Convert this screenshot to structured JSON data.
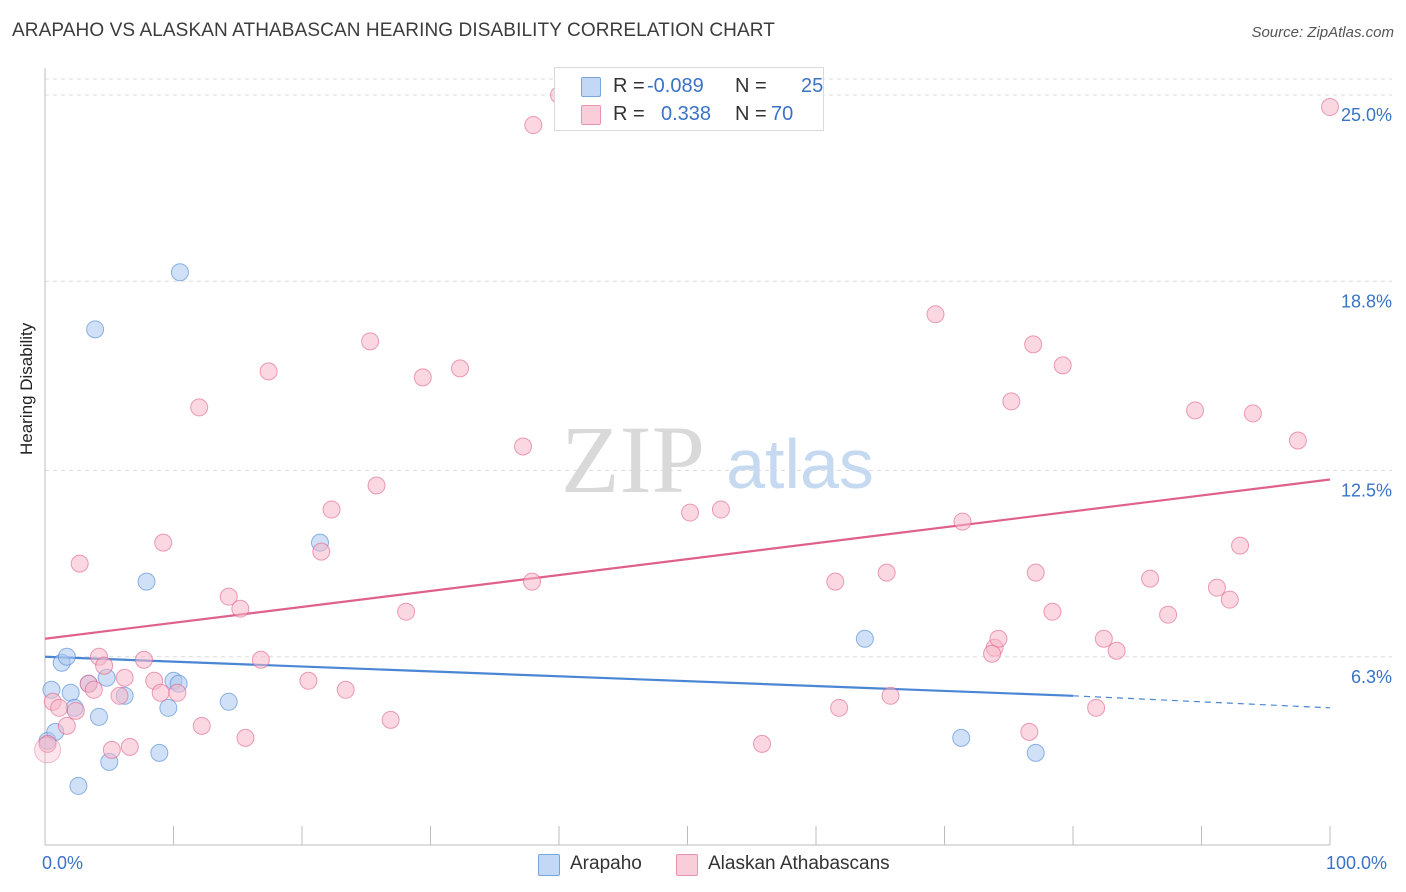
{
  "title": "ARAPAHO VS ALASKAN ATHABASCAN HEARING DISABILITY CORRELATION CHART",
  "source": "Source: ZipAtlas.com",
  "watermark": {
    "zip": "ZIP",
    "atlas": "atlas"
  },
  "legend_top": {
    "rows": [
      {
        "r_label": "R =",
        "r_value": "-0.089",
        "n_label": "N =",
        "n_value": "25",
        "color": "#a9c8f0"
      },
      {
        "r_label": "R =",
        "r_value": "0.338",
        "n_label": "N =",
        "n_value": "70",
        "color": "#f5b6c8"
      }
    ]
  },
  "legend_bottom": [
    {
      "label": "Arapaho",
      "color": "#a9c8f0"
    },
    {
      "label": "Alaskan Athabascans",
      "color": "#f5b6c8"
    }
  ],
  "axis": {
    "x_min_label": "0.0%",
    "x_max_label": "100.0%",
    "y_label": "Hearing Disability",
    "y_ticks": [
      "6.3%",
      "12.5%",
      "18.8%",
      "25.0%"
    ]
  },
  "chart_data": {
    "type": "scatter",
    "title": "ARAPAHO VS ALASKAN ATHABASCAN HEARING DISABILITY CORRELATION CHART",
    "xlabel": "",
    "ylabel": "Hearing Disability",
    "xlim": [
      0,
      100
    ],
    "ylim": [
      0,
      25.5
    ],
    "y_ticks": [
      6.3,
      12.5,
      18.8,
      25.0
    ],
    "series": [
      {
        "name": "Arapaho",
        "color": "#4a86d4",
        "fill": "#a9c8f0",
        "trend": {
          "x0": 0,
          "y0": 6.3,
          "x1": 80,
          "y1": 5.0,
          "dash_to_x": 100,
          "dash_to_y": 4.6
        },
        "points": [
          [
            0.2,
            3.5
          ],
          [
            0.5,
            5.2
          ],
          [
            0.8,
            3.8
          ],
          [
            1.3,
            6.1
          ],
          [
            1.7,
            6.3
          ],
          [
            2.0,
            5.1
          ],
          [
            2.3,
            4.6
          ],
          [
            2.6,
            2.0
          ],
          [
            3.4,
            5.4
          ],
          [
            4.2,
            4.3
          ],
          [
            5.0,
            2.8
          ],
          [
            4.8,
            5.6
          ],
          [
            6.2,
            5.0
          ],
          [
            3.9,
            17.2
          ],
          [
            7.9,
            8.8
          ],
          [
            8.9,
            3.1
          ],
          [
            9.6,
            4.6
          ],
          [
            10.0,
            5.5
          ],
          [
            10.4,
            5.4
          ],
          [
            10.5,
            19.1
          ],
          [
            14.3,
            4.8
          ],
          [
            21.4,
            10.1
          ],
          [
            63.8,
            6.9
          ],
          [
            71.3,
            3.6
          ],
          [
            77.1,
            3.1
          ]
        ]
      },
      {
        "name": "Alaskan Athabascans",
        "color": "#e0608c",
        "fill": "#f5b6c8",
        "trend": {
          "x0": 0,
          "y0": 6.9,
          "x1": 100,
          "y1": 12.2
        },
        "points": [
          [
            0.2,
            3.4
          ],
          [
            0.6,
            4.8
          ],
          [
            1.1,
            4.6
          ],
          [
            1.7,
            4.0
          ],
          [
            2.4,
            4.5
          ],
          [
            2.7,
            9.4
          ],
          [
            3.4,
            5.4
          ],
          [
            3.8,
            5.2
          ],
          [
            4.2,
            6.3
          ],
          [
            4.6,
            6.0
          ],
          [
            5.2,
            3.2
          ],
          [
            5.8,
            5.0
          ],
          [
            6.2,
            5.6
          ],
          [
            6.6,
            3.3
          ],
          [
            7.7,
            6.2
          ],
          [
            8.5,
            5.5
          ],
          [
            9.0,
            5.1
          ],
          [
            9.2,
            10.1
          ],
          [
            10.3,
            5.1
          ],
          [
            12.0,
            14.6
          ],
          [
            12.2,
            4.0
          ],
          [
            14.3,
            8.3
          ],
          [
            15.2,
            7.9
          ],
          [
            15.6,
            3.6
          ],
          [
            16.8,
            6.2
          ],
          [
            17.4,
            15.8
          ],
          [
            20.5,
            5.5
          ],
          [
            21.5,
            9.8
          ],
          [
            22.3,
            11.2
          ],
          [
            23.4,
            5.2
          ],
          [
            25.3,
            16.8
          ],
          [
            25.8,
            12.0
          ],
          [
            26.9,
            4.2
          ],
          [
            28.1,
            7.8
          ],
          [
            29.4,
            15.6
          ],
          [
            32.3,
            15.9
          ],
          [
            37.2,
            13.3
          ],
          [
            38.0,
            24.0
          ],
          [
            40.0,
            25.0
          ],
          [
            37.9,
            8.8
          ],
          [
            50.2,
            11.1
          ],
          [
            52.6,
            11.2
          ],
          [
            55.8,
            3.4
          ],
          [
            61.5,
            8.8
          ],
          [
            61.8,
            4.6
          ],
          [
            65.5,
            9.1
          ],
          [
            65.8,
            5.0
          ],
          [
            69.3,
            17.7
          ],
          [
            71.4,
            10.8
          ],
          [
            73.9,
            6.6
          ],
          [
            74.2,
            6.9
          ],
          [
            73.7,
            6.4
          ],
          [
            75.2,
            14.8
          ],
          [
            76.6,
            3.8
          ],
          [
            76.9,
            16.7
          ],
          [
            77.1,
            9.1
          ],
          [
            78.4,
            7.8
          ],
          [
            79.2,
            16.0
          ],
          [
            81.8,
            4.6
          ],
          [
            82.4,
            6.9
          ],
          [
            83.4,
            6.5
          ],
          [
            86.0,
            8.9
          ],
          [
            87.4,
            7.7
          ],
          [
            89.5,
            14.5
          ],
          [
            91.2,
            8.6
          ],
          [
            92.2,
            8.2
          ],
          [
            93.0,
            10.0
          ],
          [
            94.0,
            14.4
          ],
          [
            97.5,
            13.5
          ],
          [
            100.0,
            24.6
          ]
        ]
      }
    ]
  }
}
